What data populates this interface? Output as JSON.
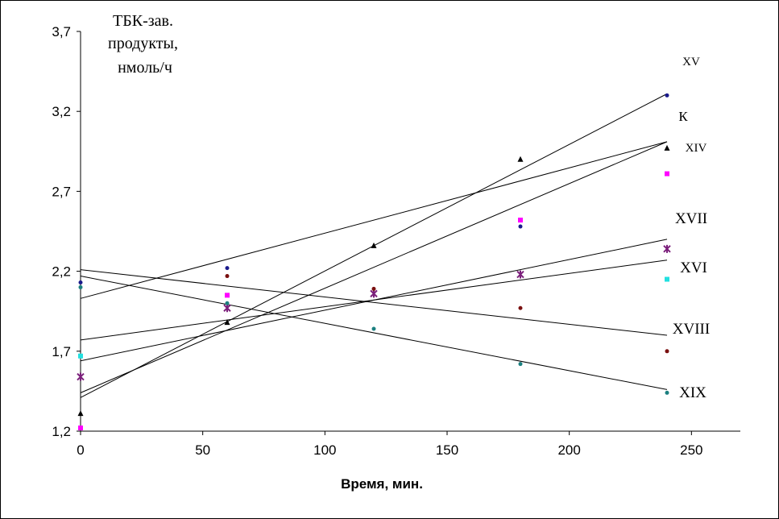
{
  "chart_data": {
    "type": "scatter",
    "ylabel_lines": [
      "ТБК-зав.",
      "продукты,",
      "нмоль/ч"
    ],
    "xlabel": "Время, мин.",
    "xlim": [
      0,
      270
    ],
    "ylim": [
      1.2,
      3.7
    ],
    "x_ticks": [
      0,
      50,
      100,
      150,
      200,
      250
    ],
    "x_tick_labels": [
      "0",
      "50",
      "100",
      "150",
      "200",
      "250"
    ],
    "y_ticks": [
      1.2,
      1.7,
      2.2,
      2.7,
      3.2,
      3.7
    ],
    "y_tick_labels": [
      "1,2",
      "1,7",
      "2,2",
      "2,7",
      "3,2",
      "3,7"
    ],
    "grid": false,
    "legend": "none",
    "series": [
      {
        "name": "XV",
        "marker": "circle",
        "color": "#1a1a8c",
        "x": [
          0,
          60,
          180,
          240
        ],
        "y": [
          2.13,
          2.22,
          2.48,
          3.3
        ],
        "trend": [
          1.44,
          3.01
        ]
      },
      {
        "name": "К",
        "marker": "circle",
        "color": "#1a1a8c",
        "x": [],
        "y": [],
        "trend": [
          1.41,
          3.31
        ]
      },
      {
        "name": "XIV",
        "marker": "triangle",
        "color": "#000000",
        "x": [
          0,
          60,
          120,
          180,
          240
        ],
        "y": [
          1.31,
          1.88,
          2.36,
          2.9,
          2.97
        ],
        "trend": [
          2.03,
          3.01
        ]
      },
      {
        "name": "XVII",
        "marker": "star",
        "color": "#7b1f7b",
        "x": [
          0,
          60,
          120,
          180,
          240
        ],
        "y": [
          1.54,
          1.97,
          2.06,
          2.18,
          2.34
        ],
        "trend": [
          1.64,
          2.4
        ]
      },
      {
        "name": "XVI",
        "marker": "square",
        "color": "#22e0e0",
        "x": [
          0,
          240
        ],
        "y": [
          1.67,
          2.15
        ],
        "trend": [
          1.77,
          2.27
        ]
      },
      {
        "name": "",
        "marker": "square",
        "color": "#ff00ff",
        "x": [
          0,
          60,
          180,
          240
        ],
        "y": [
          1.22,
          2.05,
          2.52,
          2.81
        ]
      },
      {
        "name": "XVIII",
        "marker": "circle",
        "color": "#7a1010",
        "x": [
          60,
          120,
          180,
          240
        ],
        "y": [
          2.17,
          2.09,
          1.97,
          1.7
        ],
        "trend": [
          2.21,
          1.8
        ]
      },
      {
        "name": "XIX",
        "marker": "circle",
        "color": "#1b8080",
        "x": [
          0,
          60,
          120,
          180,
          240
        ],
        "y": [
          2.1,
          2.0,
          1.84,
          1.62,
          1.44
        ],
        "trend": [
          2.17,
          1.46
        ]
      }
    ]
  }
}
